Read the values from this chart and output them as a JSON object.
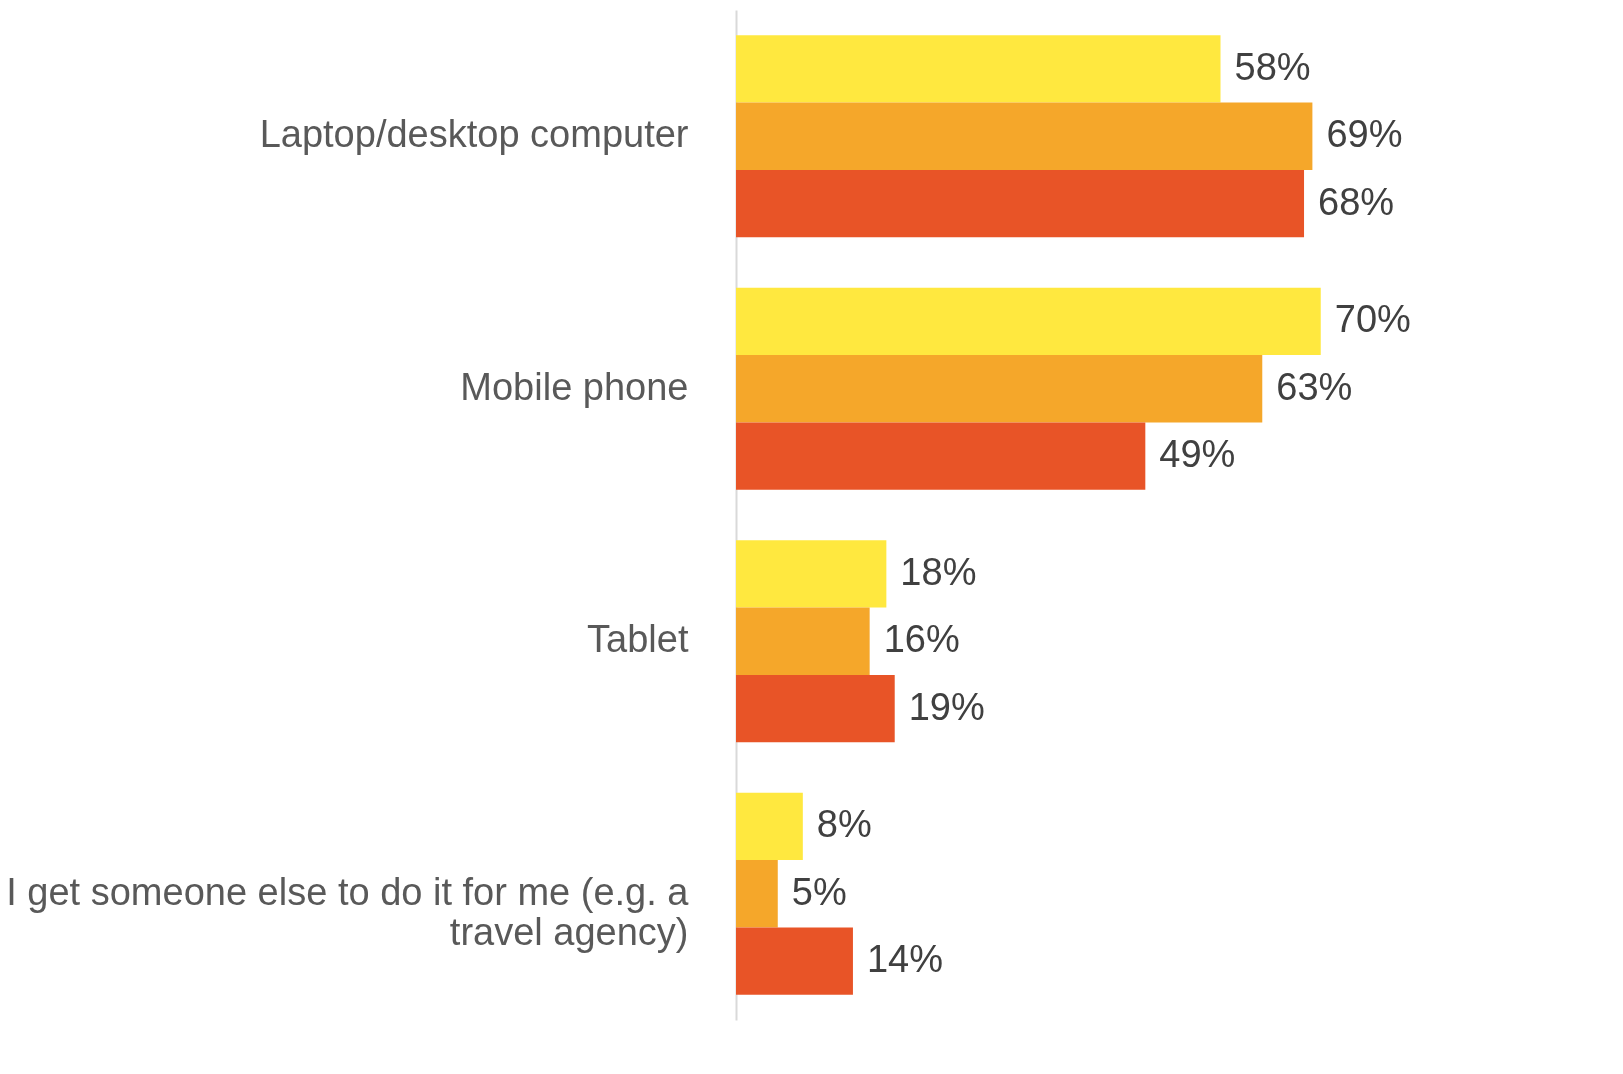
{
  "chart_data": {
    "type": "bar",
    "orientation": "horizontal",
    "categories": [
      "Laptop/desktop computer",
      "Mobile phone",
      "Tablet",
      "I get someone else to do it for me (e.g. a travel agency)"
    ],
    "series": [
      {
        "color": "#ffe83f",
        "values": [
          58,
          70,
          18,
          8
        ],
        "value_labels": [
          "58%",
          "70%",
          "18%",
          "8%"
        ]
      },
      {
        "color": "#f5a72a",
        "values": [
          69,
          63,
          16,
          5
        ],
        "value_labels": [
          "69%",
          "63%",
          "16%",
          "5%"
        ]
      },
      {
        "color": "#e85427",
        "values": [
          68,
          49,
          19,
          14
        ],
        "value_labels": [
          "68%",
          "49%",
          "19%",
          "14%"
        ]
      }
    ],
    "grid": false,
    "legend": false
  }
}
